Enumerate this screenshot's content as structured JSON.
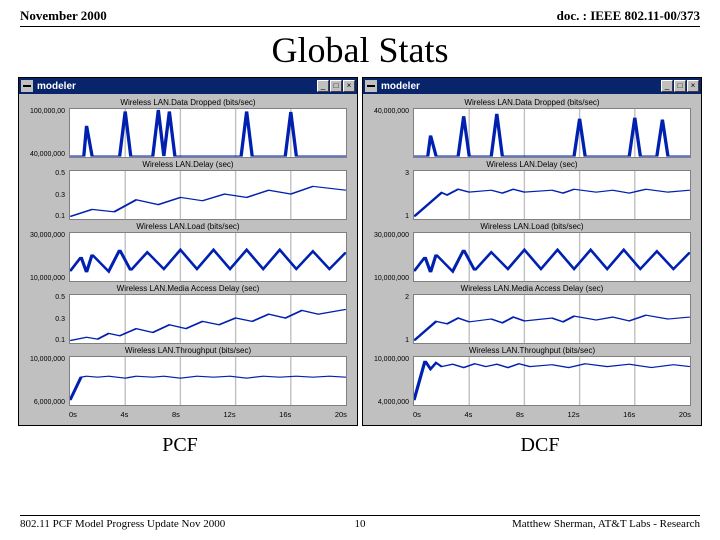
{
  "header": {
    "left": "November 2000",
    "right": "doc. : IEEE 802.11-00/373"
  },
  "title": "Global Stats",
  "x_ticks": [
    "0s",
    "4s",
    "8s",
    "12s",
    "16s",
    "20s"
  ],
  "panels": [
    {
      "window_title": "modeler",
      "label": "PCF",
      "subplots": [
        {
          "title": "Wireless LAN.Data Dropped (bits/sec)",
          "yticks": [
            "100,000,00",
            "40,000,000"
          ],
          "line": [
            [
              0,
              0.98
            ],
            [
              0.05,
              0.98
            ],
            [
              0.06,
              0.35
            ],
            [
              0.08,
              0.98
            ],
            [
              0.18,
              0.98
            ],
            [
              0.2,
              0.05
            ],
            [
              0.22,
              0.98
            ],
            [
              0.3,
              0.98
            ],
            [
              0.32,
              0.02
            ],
            [
              0.34,
              0.98
            ],
            [
              0.36,
              0.05
            ],
            [
              0.38,
              0.98
            ],
            [
              0.62,
              0.98
            ],
            [
              0.64,
              0.05
            ],
            [
              0.66,
              0.98
            ],
            [
              0.78,
              0.98
            ],
            [
              0.8,
              0.06
            ],
            [
              0.82,
              0.98
            ],
            [
              1,
              0.98
            ]
          ]
        },
        {
          "title": "Wireless LAN.Delay (sec)",
          "yticks": [
            "0.5",
            "0.3",
            "0.1"
          ],
          "line": [
            [
              0,
              0.95
            ],
            [
              0.08,
              0.8
            ],
            [
              0.16,
              0.85
            ],
            [
              0.24,
              0.6
            ],
            [
              0.32,
              0.7
            ],
            [
              0.4,
              0.55
            ],
            [
              0.48,
              0.62
            ],
            [
              0.56,
              0.48
            ],
            [
              0.64,
              0.55
            ],
            [
              0.72,
              0.4
            ],
            [
              0.8,
              0.48
            ],
            [
              0.88,
              0.32
            ],
            [
              1,
              0.4
            ]
          ]
        },
        {
          "title": "Wireless LAN.Load (bits/sec)",
          "yticks": [
            "30,000,000",
            "10,000,000"
          ],
          "line": [
            [
              0,
              0.8
            ],
            [
              0.04,
              0.5
            ],
            [
              0.06,
              0.82
            ],
            [
              0.08,
              0.45
            ],
            [
              0.14,
              0.8
            ],
            [
              0.18,
              0.35
            ],
            [
              0.22,
              0.78
            ],
            [
              0.28,
              0.4
            ],
            [
              0.34,
              0.75
            ],
            [
              0.4,
              0.35
            ],
            [
              0.46,
              0.75
            ],
            [
              0.52,
              0.35
            ],
            [
              0.58,
              0.75
            ],
            [
              0.64,
              0.35
            ],
            [
              0.7,
              0.75
            ],
            [
              0.76,
              0.35
            ],
            [
              0.82,
              0.75
            ],
            [
              0.88,
              0.38
            ],
            [
              0.94,
              0.75
            ],
            [
              1,
              0.4
            ]
          ]
        },
        {
          "title": "Wireless LAN.Media Access Delay (sec)",
          "yticks": [
            "0.5",
            "0.3",
            "0.1"
          ],
          "line": [
            [
              0,
              0.95
            ],
            [
              0.06,
              0.88
            ],
            [
              0.1,
              0.92
            ],
            [
              0.14,
              0.8
            ],
            [
              0.18,
              0.85
            ],
            [
              0.24,
              0.7
            ],
            [
              0.3,
              0.78
            ],
            [
              0.36,
              0.62
            ],
            [
              0.42,
              0.7
            ],
            [
              0.48,
              0.55
            ],
            [
              0.54,
              0.62
            ],
            [
              0.6,
              0.48
            ],
            [
              0.66,
              0.55
            ],
            [
              0.72,
              0.4
            ],
            [
              0.78,
              0.48
            ],
            [
              0.84,
              0.32
            ],
            [
              0.9,
              0.4
            ],
            [
              1,
              0.3
            ]
          ]
        },
        {
          "title": "Wireless LAN.Throughput (bits/sec)",
          "yticks": [
            "10,000,000",
            "6,000,000"
          ],
          "line": [
            [
              0,
              0.9
            ],
            [
              0.04,
              0.42
            ],
            [
              0.06,
              0.4
            ],
            [
              0.1,
              0.42
            ],
            [
              0.14,
              0.4
            ],
            [
              0.2,
              0.44
            ],
            [
              0.24,
              0.4
            ],
            [
              0.3,
              0.42
            ],
            [
              0.34,
              0.4
            ],
            [
              0.4,
              0.44
            ],
            [
              0.46,
              0.4
            ],
            [
              0.52,
              0.42
            ],
            [
              0.58,
              0.4
            ],
            [
              0.64,
              0.44
            ],
            [
              0.7,
              0.4
            ],
            [
              0.76,
              0.42
            ],
            [
              0.82,
              0.4
            ],
            [
              0.88,
              0.42
            ],
            [
              0.94,
              0.4
            ],
            [
              1,
              0.42
            ]
          ]
        }
      ]
    },
    {
      "window_title": "modeler",
      "label": "DCF",
      "subplots": [
        {
          "title": "Wireless LAN.Data Dropped (bits/sec)",
          "yticks": [
            "40,000,000"
          ],
          "line": [
            [
              0,
              0.98
            ],
            [
              0.05,
              0.98
            ],
            [
              0.06,
              0.55
            ],
            [
              0.08,
              0.98
            ],
            [
              0.16,
              0.98
            ],
            [
              0.18,
              0.15
            ],
            [
              0.2,
              0.98
            ],
            [
              0.28,
              0.98
            ],
            [
              0.3,
              0.1
            ],
            [
              0.32,
              0.98
            ],
            [
              0.4,
              0.98
            ],
            [
              0.58,
              0.98
            ],
            [
              0.6,
              0.2
            ],
            [
              0.62,
              0.98
            ],
            [
              0.78,
              0.98
            ],
            [
              0.8,
              0.18
            ],
            [
              0.82,
              0.98
            ],
            [
              0.88,
              0.98
            ],
            [
              0.9,
              0.22
            ],
            [
              0.92,
              0.98
            ],
            [
              1,
              0.98
            ]
          ]
        },
        {
          "title": "Wireless LAN.Delay (sec)",
          "yticks": [
            "3",
            "1"
          ],
          "line": [
            [
              0,
              0.95
            ],
            [
              0.1,
              0.45
            ],
            [
              0.12,
              0.5
            ],
            [
              0.16,
              0.38
            ],
            [
              0.2,
              0.44
            ],
            [
              0.28,
              0.4
            ],
            [
              0.32,
              0.46
            ],
            [
              0.36,
              0.38
            ],
            [
              0.4,
              0.44
            ],
            [
              0.5,
              0.4
            ],
            [
              0.54,
              0.46
            ],
            [
              0.58,
              0.38
            ],
            [
              0.66,
              0.44
            ],
            [
              0.72,
              0.4
            ],
            [
              0.78,
              0.46
            ],
            [
              0.84,
              0.38
            ],
            [
              0.92,
              0.44
            ],
            [
              1,
              0.4
            ]
          ]
        },
        {
          "title": "Wireless LAN.Load (bits/sec)",
          "yticks": [
            "30,000,000",
            "10,000,000"
          ],
          "line": [
            [
              0,
              0.8
            ],
            [
              0.04,
              0.5
            ],
            [
              0.06,
              0.82
            ],
            [
              0.08,
              0.45
            ],
            [
              0.14,
              0.8
            ],
            [
              0.18,
              0.35
            ],
            [
              0.22,
              0.78
            ],
            [
              0.28,
              0.4
            ],
            [
              0.34,
              0.75
            ],
            [
              0.4,
              0.35
            ],
            [
              0.46,
              0.75
            ],
            [
              0.52,
              0.35
            ],
            [
              0.58,
              0.75
            ],
            [
              0.64,
              0.35
            ],
            [
              0.7,
              0.75
            ],
            [
              0.76,
              0.35
            ],
            [
              0.82,
              0.75
            ],
            [
              0.88,
              0.38
            ],
            [
              0.94,
              0.75
            ],
            [
              1,
              0.4
            ]
          ]
        },
        {
          "title": "Wireless LAN.Media Access Delay (sec)",
          "yticks": [
            "2",
            "1"
          ],
          "line": [
            [
              0,
              0.95
            ],
            [
              0.08,
              0.55
            ],
            [
              0.12,
              0.6
            ],
            [
              0.16,
              0.48
            ],
            [
              0.2,
              0.56
            ],
            [
              0.28,
              0.5
            ],
            [
              0.32,
              0.58
            ],
            [
              0.36,
              0.46
            ],
            [
              0.4,
              0.54
            ],
            [
              0.5,
              0.48
            ],
            [
              0.54,
              0.56
            ],
            [
              0.58,
              0.44
            ],
            [
              0.66,
              0.52
            ],
            [
              0.72,
              0.46
            ],
            [
              0.78,
              0.54
            ],
            [
              0.84,
              0.42
            ],
            [
              0.92,
              0.5
            ],
            [
              1,
              0.46
            ]
          ]
        },
        {
          "title": "Wireless LAN.Throughput (bits/sec)",
          "yticks": [
            "10,000,000",
            "4,000,000"
          ],
          "line": [
            [
              0,
              0.9
            ],
            [
              0.04,
              0.08
            ],
            [
              0.06,
              0.25
            ],
            [
              0.08,
              0.12
            ],
            [
              0.1,
              0.2
            ],
            [
              0.14,
              0.15
            ],
            [
              0.18,
              0.22
            ],
            [
              0.22,
              0.14
            ],
            [
              0.26,
              0.2
            ],
            [
              0.3,
              0.15
            ],
            [
              0.34,
              0.22
            ],
            [
              0.38,
              0.14
            ],
            [
              0.42,
              0.2
            ],
            [
              0.5,
              0.16
            ],
            [
              0.56,
              0.22
            ],
            [
              0.62,
              0.14
            ],
            [
              0.7,
              0.2
            ],
            [
              0.78,
              0.15
            ],
            [
              0.86,
              0.22
            ],
            [
              0.94,
              0.16
            ],
            [
              1,
              0.2
            ]
          ]
        }
      ]
    }
  ],
  "footer": {
    "left": "802.11 PCF Model Progress Update Nov 2000",
    "page": "10",
    "right": "Matthew Sherman, AT&T Labs - Research"
  },
  "colors": {
    "line": "#0020b0",
    "plot_bg": "#ffffff",
    "panel_bg": "#c0c0c0",
    "titlebar_bg": "#08246b"
  }
}
